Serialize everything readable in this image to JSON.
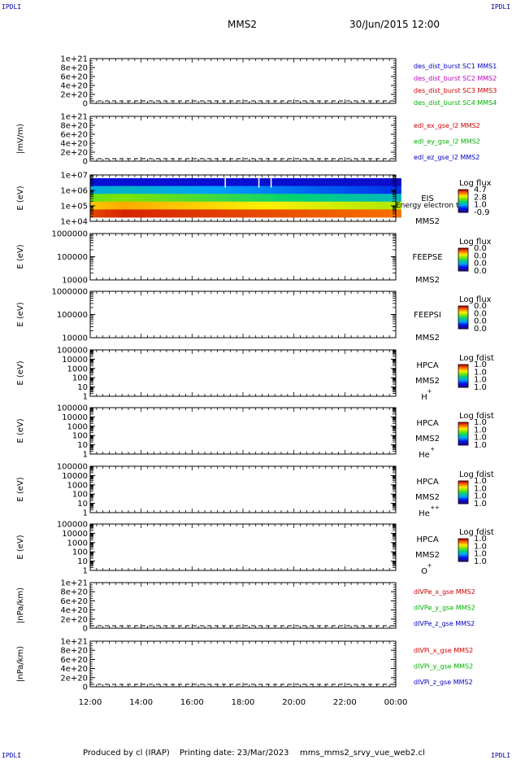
{
  "corners": {
    "tl": "IPDLI",
    "tr": "IPDLI",
    "bl": "IPDLI",
    "br": "IPDLI"
  },
  "header": {
    "title": "MMS2",
    "date": "30/Jun/2015 12:00"
  },
  "footer": {
    "produced_by": "Produced by cl (IRAP)",
    "printing_date": "Printing date: 23/Mar/2023",
    "script": "mms_mms2_srvy_vue_web2.cl"
  },
  "chart_data": [
    {
      "type": "line",
      "ylabel": "",
      "ytick_labels": [
        "1e+21",
        "8e+20",
        "6e+20",
        "4e+20",
        "2e+20",
        "0"
      ],
      "ylim": [
        0,
        1e+21
      ],
      "zero_line": true,
      "series": [
        {
          "name": "des_dist_burst SC1 MMS1",
          "color": "#0000c0",
          "values": []
        },
        {
          "name": "des_dist_burst SC2 MMS2",
          "color": "#c000c0",
          "values": []
        },
        {
          "name": "des_dist_burst SC3 MMS3",
          "color": "#cc0000",
          "values": []
        },
        {
          "name": "des_dist_burst SC4 MMS4",
          "color": "#00b000",
          "values": []
        }
      ]
    },
    {
      "type": "line",
      "ylabel": "|mV/m)",
      "ytick_labels": [
        "1e+21",
        "8e+20",
        "6e+20",
        "4e+20",
        "2e+20",
        "0"
      ],
      "ylim": [
        0,
        1e+21
      ],
      "zero_line": true,
      "series": [
        {
          "name": "edl_ex_gse_l2 MMS2",
          "color": "#cc0000",
          "values": []
        },
        {
          "name": "edl_ey_gse_l2 MMS2",
          "color": "#00b000",
          "values": []
        },
        {
          "name": "edl_ez_gse_l2 MMS2",
          "color": "#0000c0",
          "values": []
        }
      ]
    },
    {
      "type": "heatmap",
      "ylabel": "E (eV)",
      "scale": "log",
      "ylim": [
        10000,
        10000000
      ],
      "ytick_labels": [
        "1e+07",
        "1e+06",
        "1e+05",
        "1e+04"
      ],
      "labels": [
        "EIS",
        "MMS2"
      ],
      "overlay_text": "Energy electron to",
      "colorbar": {
        "title": "Log flux",
        "ticks": [
          "4.7",
          "2.8",
          "1.0",
          "-0.9"
        ]
      },
      "rows": [
        "high",
        "mid-high",
        "mid",
        "mid-low",
        "low"
      ]
    },
    {
      "type": "heatmap",
      "ylabel": "E (eV)",
      "scale": "log",
      "ylim": [
        10000,
        1000000
      ],
      "ytick_labels": [
        "1000000",
        "100000",
        "10000"
      ],
      "labels": [
        "FEEPSE",
        "MMS2"
      ],
      "colorbar": {
        "title": "Log flux",
        "ticks": [
          "0.0",
          "0.0",
          "0.0",
          "0.0"
        ]
      }
    },
    {
      "type": "heatmap",
      "ylabel": "E (eV)",
      "scale": "log",
      "ylim": [
        10000,
        1000000
      ],
      "ytick_labels": [
        "1000000",
        "100000",
        "10000"
      ],
      "labels": [
        "FEEPSI",
        "MMS2"
      ],
      "colorbar": {
        "title": "Log flux",
        "ticks": [
          "0.0",
          "0.0",
          "0.0",
          "0.0"
        ]
      }
    },
    {
      "type": "heatmap",
      "ylabel": "E (eV)",
      "scale": "log",
      "ylim": [
        1,
        100000
      ],
      "ytick_labels": [
        "100000",
        "10000",
        "1000",
        "100",
        "10",
        "1"
      ],
      "labels": [
        "HPCA",
        "MMS2"
      ],
      "species": "H",
      "species_sup": "+",
      "colorbar": {
        "title": "Log fdist",
        "ticks": [
          "1.0",
          "1.0",
          "1.0",
          "1.0"
        ]
      }
    },
    {
      "type": "heatmap",
      "ylabel": "E (eV)",
      "scale": "log",
      "ylim": [
        1,
        100000
      ],
      "ytick_labels": [
        "100000",
        "10000",
        "1000",
        "100",
        "10",
        "1"
      ],
      "labels": [
        "HPCA",
        "MMS2"
      ],
      "species": "He",
      "species_sup": "+",
      "colorbar": {
        "title": "Log fdist",
        "ticks": [
          "1.0",
          "1.0",
          "1.0",
          "1.0"
        ]
      }
    },
    {
      "type": "heatmap",
      "ylabel": "E (eV)",
      "scale": "log",
      "ylim": [
        1,
        100000
      ],
      "ytick_labels": [
        "100000",
        "10000",
        "1000",
        "100",
        "10",
        "1"
      ],
      "labels": [
        "HPCA",
        "MMS2"
      ],
      "species": "He",
      "species_sup": "++",
      "colorbar": {
        "title": "Log fdist",
        "ticks": [
          "1.0",
          "1.0",
          "1.0",
          "1.0"
        ]
      }
    },
    {
      "type": "heatmap",
      "ylabel": "E (eV)",
      "scale": "log",
      "ylim": [
        1,
        100000
      ],
      "ytick_labels": [
        "100000",
        "10000",
        "1000",
        "100",
        "10",
        "1"
      ],
      "labels": [
        "HPCA",
        "MMS2"
      ],
      "species": "O",
      "species_sup": "+",
      "colorbar": {
        "title": "Log fdist",
        "ticks": [
          "1.0",
          "1.0",
          "1.0",
          "1.0"
        ]
      }
    },
    {
      "type": "line",
      "ylabel": "|nPa/km)",
      "ytick_labels": [
        "1e+21",
        "8e+20",
        "6e+20",
        "4e+20",
        "2e+20",
        "0"
      ],
      "ylim": [
        0,
        1e+21
      ],
      "zero_line": true,
      "series": [
        {
          "name": "dIVPe_x_gse MMS2",
          "color": "#cc0000",
          "values": []
        },
        {
          "name": "dIVPe_y_gse MMS2",
          "color": "#00b000",
          "values": []
        },
        {
          "name": "dIVPe_z_gse MMS2",
          "color": "#0000c0",
          "values": []
        }
      ]
    },
    {
      "type": "line",
      "ylabel": "|nPa/km)",
      "ytick_labels": [
        "1e+21",
        "8e+20",
        "6e+20",
        "4e+20",
        "2e+20",
        "0"
      ],
      "ylim": [
        0,
        1e+21
      ],
      "zero_line": true,
      "series": [
        {
          "name": "dIVPi_x_gse MMS2",
          "color": "#cc0000",
          "values": []
        },
        {
          "name": "dIVPi_y_gse MMS2",
          "color": "#00b000",
          "values": []
        },
        {
          "name": "dIVPi_z_gse MMS2",
          "color": "#0000c0",
          "values": []
        }
      ]
    }
  ],
  "x_axis": {
    "tick_labels": [
      "12:00",
      "14:00",
      "16:00",
      "18:00",
      "20:00",
      "22:00",
      "00:00"
    ]
  }
}
